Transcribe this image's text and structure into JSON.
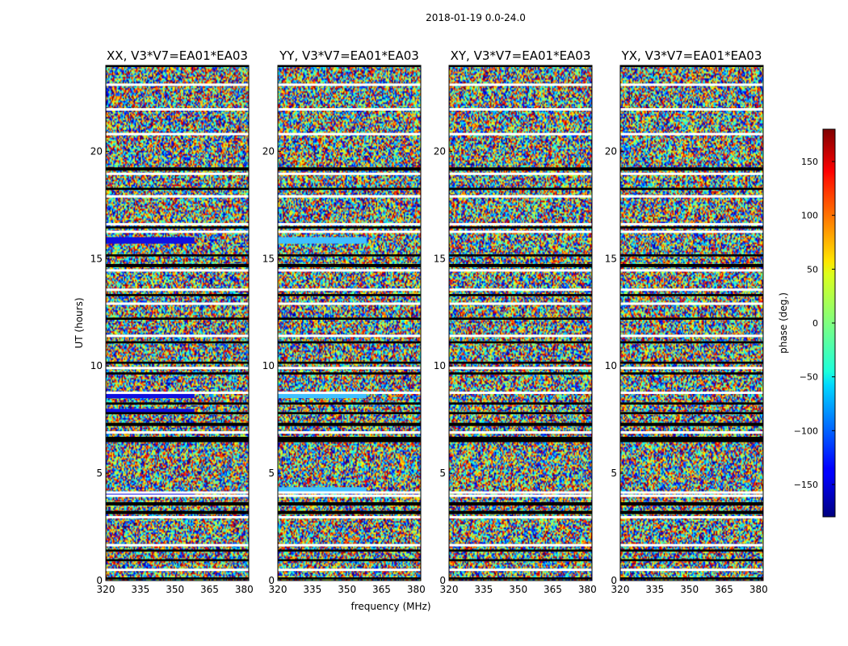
{
  "chart_data": {
    "type": "heatmap",
    "suptitle": "2018-01-19 0.0-24.0",
    "xlabel": "frequency (MHz)",
    "ylabel": "UT (hours)",
    "xlim": [
      320,
      382
    ],
    "ylim": [
      0,
      24
    ],
    "xticks": [
      320,
      335,
      350,
      365,
      380
    ],
    "yticks": [
      0,
      5,
      10,
      15,
      20
    ],
    "panels": [
      {
        "title": "XX, V3*V7=EA01*EA03",
        "blue_bands": [
          [
            15.7,
            16.0
          ],
          [
            8.5,
            8.75
          ],
          [
            3.9,
            4.15
          ],
          [
            7.8,
            8.0
          ]
        ]
      },
      {
        "title": "YY, V3*V7=EA01*EA03",
        "blue_bands": [
          [
            15.7,
            16.0
          ],
          [
            4.1,
            4.35
          ],
          [
            8.5,
            8.7
          ]
        ]
      },
      {
        "title": "XY, V3*V7=EA01*EA03",
        "blue_bands": []
      },
      {
        "title": "YX, V3*V7=EA01*EA03",
        "blue_bands": []
      }
    ],
    "flagged_white_ut": [
      21.95,
      20.8,
      18.95,
      17.9,
      16.6,
      16.25,
      14.45,
      13.55,
      12.9,
      11.4,
      9.9,
      8.75,
      6.9,
      4.1,
      3.95,
      2.95,
      1.65,
      0.5,
      23.1
    ],
    "flagged_black_ut": [
      [
        23.95,
        24.0
      ],
      [
        19.1,
        19.25
      ],
      [
        18.2,
        18.3
      ],
      [
        16.4,
        16.5
      ],
      [
        15.1,
        15.2
      ],
      [
        14.6,
        14.75
      ],
      [
        13.25,
        13.35
      ],
      [
        12.15,
        12.25
      ],
      [
        11.05,
        11.15
      ],
      [
        10.1,
        10.2
      ],
      [
        9.6,
        9.7
      ],
      [
        8.2,
        8.3
      ],
      [
        7.75,
        7.85
      ],
      [
        7.2,
        7.35
      ],
      [
        6.45,
        6.7
      ],
      [
        3.5,
        3.65
      ],
      [
        3.1,
        3.25
      ],
      [
        1.35,
        1.45
      ],
      [
        0.9,
        1.0
      ],
      [
        0.05,
        0.15
      ]
    ],
    "colorbar": {
      "label": "phase (deg.)",
      "range": [
        -180,
        180
      ],
      "ticks": [
        150,
        100,
        50,
        0,
        -50,
        -100,
        -150
      ],
      "tick_labels": [
        "150",
        "100",
        "50",
        "0",
        "−50",
        "−100",
        "−150"
      ],
      "colormap": "jet"
    }
  }
}
